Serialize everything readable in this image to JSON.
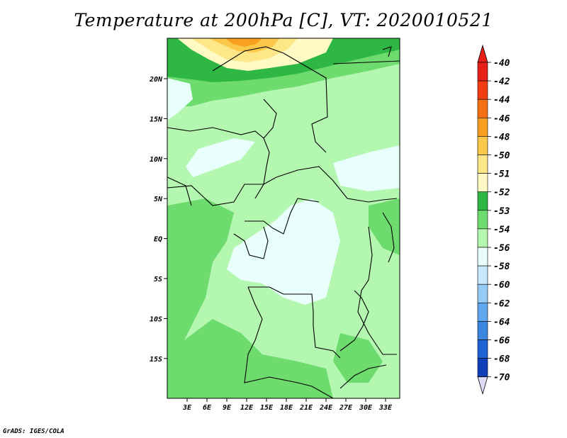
{
  "title": "Temperature at 200hPa [C], VT: 2020010521",
  "credit": "GrADS: IGES/COLA",
  "map": {
    "lon_ticks": [
      "3E",
      "6E",
      "9E",
      "12E",
      "15E",
      "18E",
      "21E",
      "24E",
      "27E",
      "30E",
      "33E"
    ],
    "lat_ticks": [
      "20N",
      "15N",
      "10N",
      "5N",
      "EQ",
      "5S",
      "10S",
      "15S"
    ]
  },
  "legend": {
    "levels": [
      {
        "label": "-40",
        "color": "#e8201a"
      },
      {
        "label": "-42",
        "color": "#f23e10"
      },
      {
        "label": "-44",
        "color": "#f57012"
      },
      {
        "label": "-46",
        "color": "#f8a020"
      },
      {
        "label": "-48",
        "color": "#fbc84a"
      },
      {
        "label": "-50",
        "color": "#fde787"
      },
      {
        "label": "-51",
        "color": "#fffac3"
      },
      {
        "label": "-52",
        "color": "#2fb744"
      },
      {
        "label": "-53",
        "color": "#6edb6e"
      },
      {
        "label": "-54",
        "color": "#b4f7b0"
      },
      {
        "label": "-56",
        "color": "#e8fffb"
      },
      {
        "label": "-58",
        "color": "#c8e8ff"
      },
      {
        "label": "-60",
        "color": "#96cbf7"
      },
      {
        "label": "-62",
        "color": "#5fa8ee"
      },
      {
        "label": "-64",
        "color": "#3a86e0"
      },
      {
        "label": "-66",
        "color": "#1e63d6"
      },
      {
        "label": "-68",
        "color": "#0e3fb8"
      },
      {
        "label": "-70",
        "color": "#051a7a"
      }
    ],
    "top_color": "#e8201a",
    "bottom_color": "#dcdcf4"
  }
}
